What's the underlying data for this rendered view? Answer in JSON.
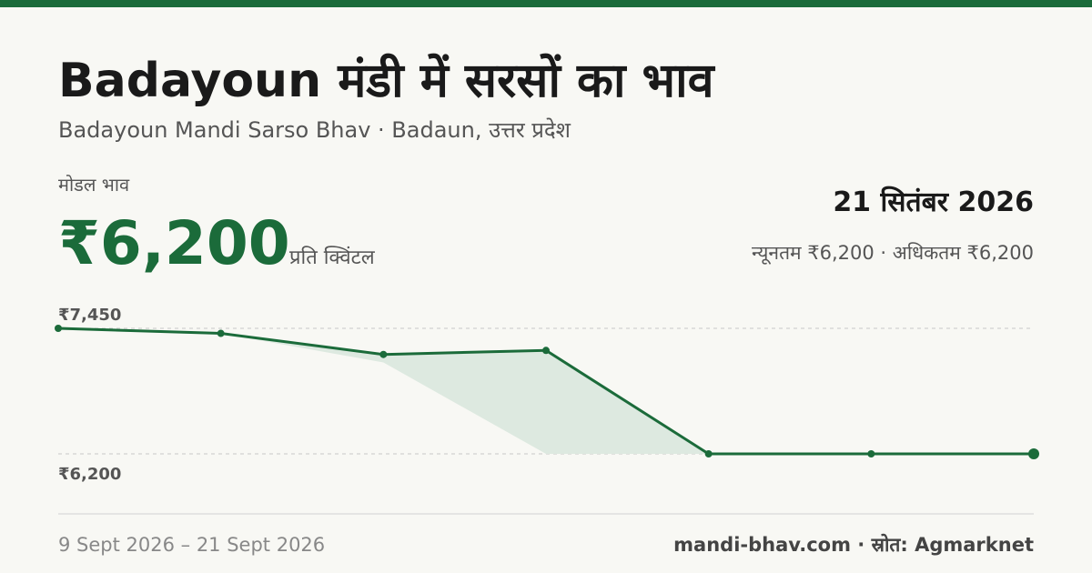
{
  "header": {
    "title": "Badayoun मंडी में सरसों का भाव",
    "subtitle": "Badayoun Mandi Sarso Bhav · Badaun, उत्तर प्रदेश",
    "price_label": "मोडल भाव",
    "price": "₹6,200",
    "unit": "प्रति क्विंटल",
    "date": "21 सितंबर 2026",
    "range": "न्यूनतम ₹6,200 · अधिकतम ₹6,200"
  },
  "chart_data": {
    "type": "line",
    "color": "#1b6b3a",
    "band_color": "#dde9e0",
    "categories": [
      null,
      null,
      null,
      null,
      null,
      null,
      null
    ],
    "values": [
      7450,
      7400,
      7190,
      7230,
      6200,
      6200,
      6200
    ],
    "min_values": [
      7450,
      7400,
      7110,
      6200,
      6200,
      6200,
      6200
    ],
    "ylim": [
      6200,
      7450
    ],
    "yticks": [
      {
        "value": 7450,
        "label": "₹7,450"
      },
      {
        "value": 6200,
        "label": "₹6,200"
      }
    ],
    "grid": true
  },
  "footer": {
    "dates": "9 Sept 2026 – 21 Sept 2026",
    "source": "mandi-bhav.com · स्रोत: Agmarknet"
  }
}
